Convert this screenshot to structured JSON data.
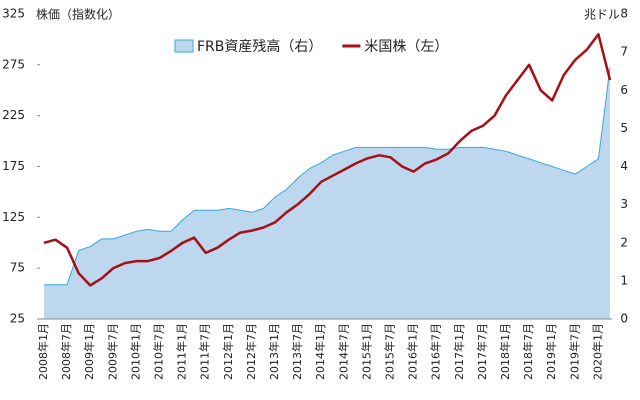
{
  "chart_data": {
    "type": "line",
    "ylabel": "株価（指数化）",
    "y2label": "兆ドル",
    "categories": [
      "2008年1月",
      null,
      "2008年7月",
      null,
      "2009年1月",
      null,
      "2009年7月",
      null,
      "2010年1月",
      null,
      "2010年7月",
      null,
      "2011年1月",
      null,
      "2011年7月",
      null,
      "2012年1月",
      null,
      "2012年7月",
      null,
      "2013年1月",
      null,
      "2013年7月",
      null,
      "2014年1月",
      null,
      "2014年7月",
      null,
      "2015年1月",
      null,
      "2015年7月",
      null,
      "2016年1月",
      null,
      "2016年7月",
      null,
      "2017年1月",
      null,
      "2017年7月",
      null,
      "2018年1月",
      null,
      "2018年7月",
      null,
      "2019年1月",
      null,
      "2019年7月",
      null,
      "2020年1月",
      null
    ],
    "series": [
      {
        "name": "FRB資産残高（右）",
        "style": "area",
        "axis": "y2",
        "color": "#bdd7ee",
        "edge_color": "#3aa8dc",
        "values": [
          0.9,
          0.9,
          0.9,
          1.8,
          1.9,
          2.1,
          2.1,
          2.2,
          2.3,
          2.35,
          2.3,
          2.3,
          2.6,
          2.85,
          2.85,
          2.85,
          2.9,
          2.85,
          2.8,
          2.9,
          3.2,
          3.4,
          3.7,
          3.95,
          4.1,
          4.3,
          4.4,
          4.5,
          4.5,
          4.5,
          4.5,
          4.5,
          4.5,
          4.5,
          4.45,
          4.45,
          4.5,
          4.5,
          4.5,
          4.45,
          4.4,
          4.3,
          4.2,
          4.1,
          4.0,
          3.9,
          3.8,
          4.0,
          4.2,
          6.6
        ]
      },
      {
        "name": "米国株（左）",
        "style": "line",
        "axis": "y",
        "color": "#a50f15",
        "values": [
          100,
          103,
          95,
          70,
          58,
          65,
          75,
          80,
          82,
          82,
          85,
          92,
          100,
          105,
          90,
          95,
          103,
          110,
          112,
          115,
          120,
          130,
          138,
          148,
          160,
          166,
          172,
          178,
          183,
          186,
          184,
          175,
          170,
          178,
          182,
          188,
          200,
          210,
          215,
          225,
          245,
          260,
          275,
          250,
          240,
          265,
          280,
          290,
          305,
          260
        ]
      }
    ],
    "ylim": [
      25,
      325
    ],
    "yticks": [
      25,
      75,
      125,
      175,
      225,
      275,
      325
    ],
    "y2lim": [
      0,
      8
    ],
    "y2ticks": [
      0,
      1,
      2,
      3,
      4,
      5,
      6,
      7,
      8
    ],
    "legend": "top"
  }
}
